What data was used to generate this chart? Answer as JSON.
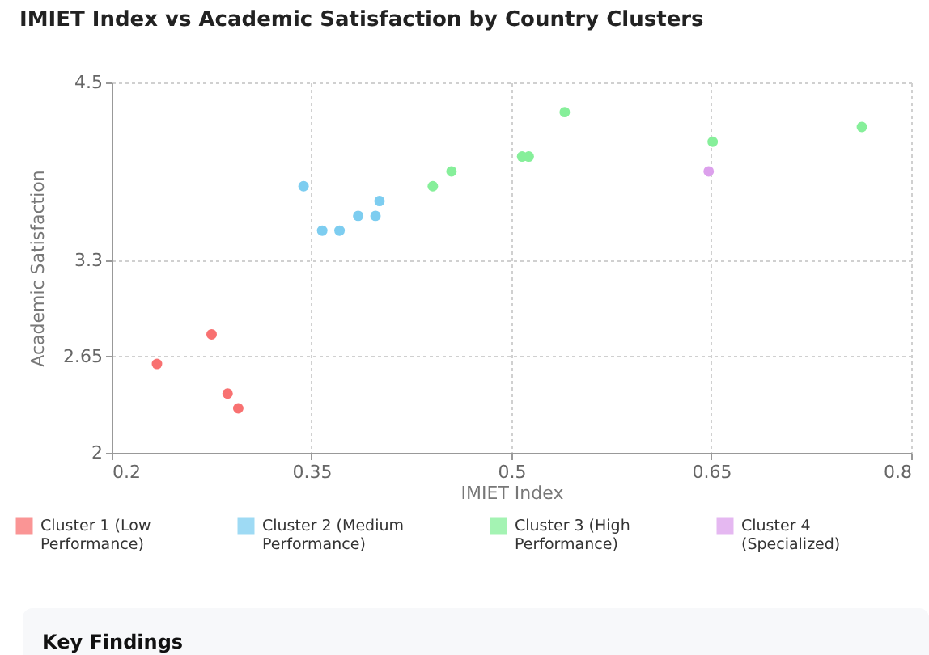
{
  "chart_data": {
    "type": "scatter",
    "title": "IMIET Index vs Academic Satisfaction by Country Clusters",
    "xlabel": "IMIET Index",
    "ylabel": "Academic Satisfaction",
    "xlim": [
      0.2,
      0.8
    ],
    "xticks": [
      0.2,
      0.35,
      0.5,
      0.65,
      0.8
    ],
    "ylim": [
      2,
      4.5
    ],
    "yticks": [
      2,
      2.65,
      3.3,
      4.5
    ],
    "grid": true,
    "legend": "bottom",
    "marker": "circle",
    "series": [
      {
        "name": "Cluster 1 (Low Performance)",
        "color": "#f87171",
        "x": [
          0.234,
          0.275,
          0.287,
          0.295
        ],
        "values": [
          2.6,
          2.8,
          2.4,
          2.3
        ]
      },
      {
        "name": "Cluster 2 (Medium Performance)",
        "color": "#7dcdf0",
        "x": [
          0.344,
          0.358,
          0.371,
          0.385,
          0.398,
          0.401
        ],
        "values": [
          3.8,
          3.5,
          3.5,
          3.6,
          3.6,
          3.7
        ]
      },
      {
        "name": "Cluster 3 (High Performance)",
        "color": "#86ef9a",
        "x": [
          0.441,
          0.455,
          0.508,
          0.513,
          0.54,
          0.651,
          0.763
        ],
        "values": [
          3.8,
          3.9,
          4.0,
          4.0,
          4.3,
          4.1,
          4.2
        ]
      },
      {
        "name": "Cluster 4 (Specialized)",
        "color": "#dca0ec",
        "x": [
          0.648
        ],
        "values": [
          3.9
        ]
      }
    ],
    "annotations": [
      "Key Findings"
    ]
  }
}
